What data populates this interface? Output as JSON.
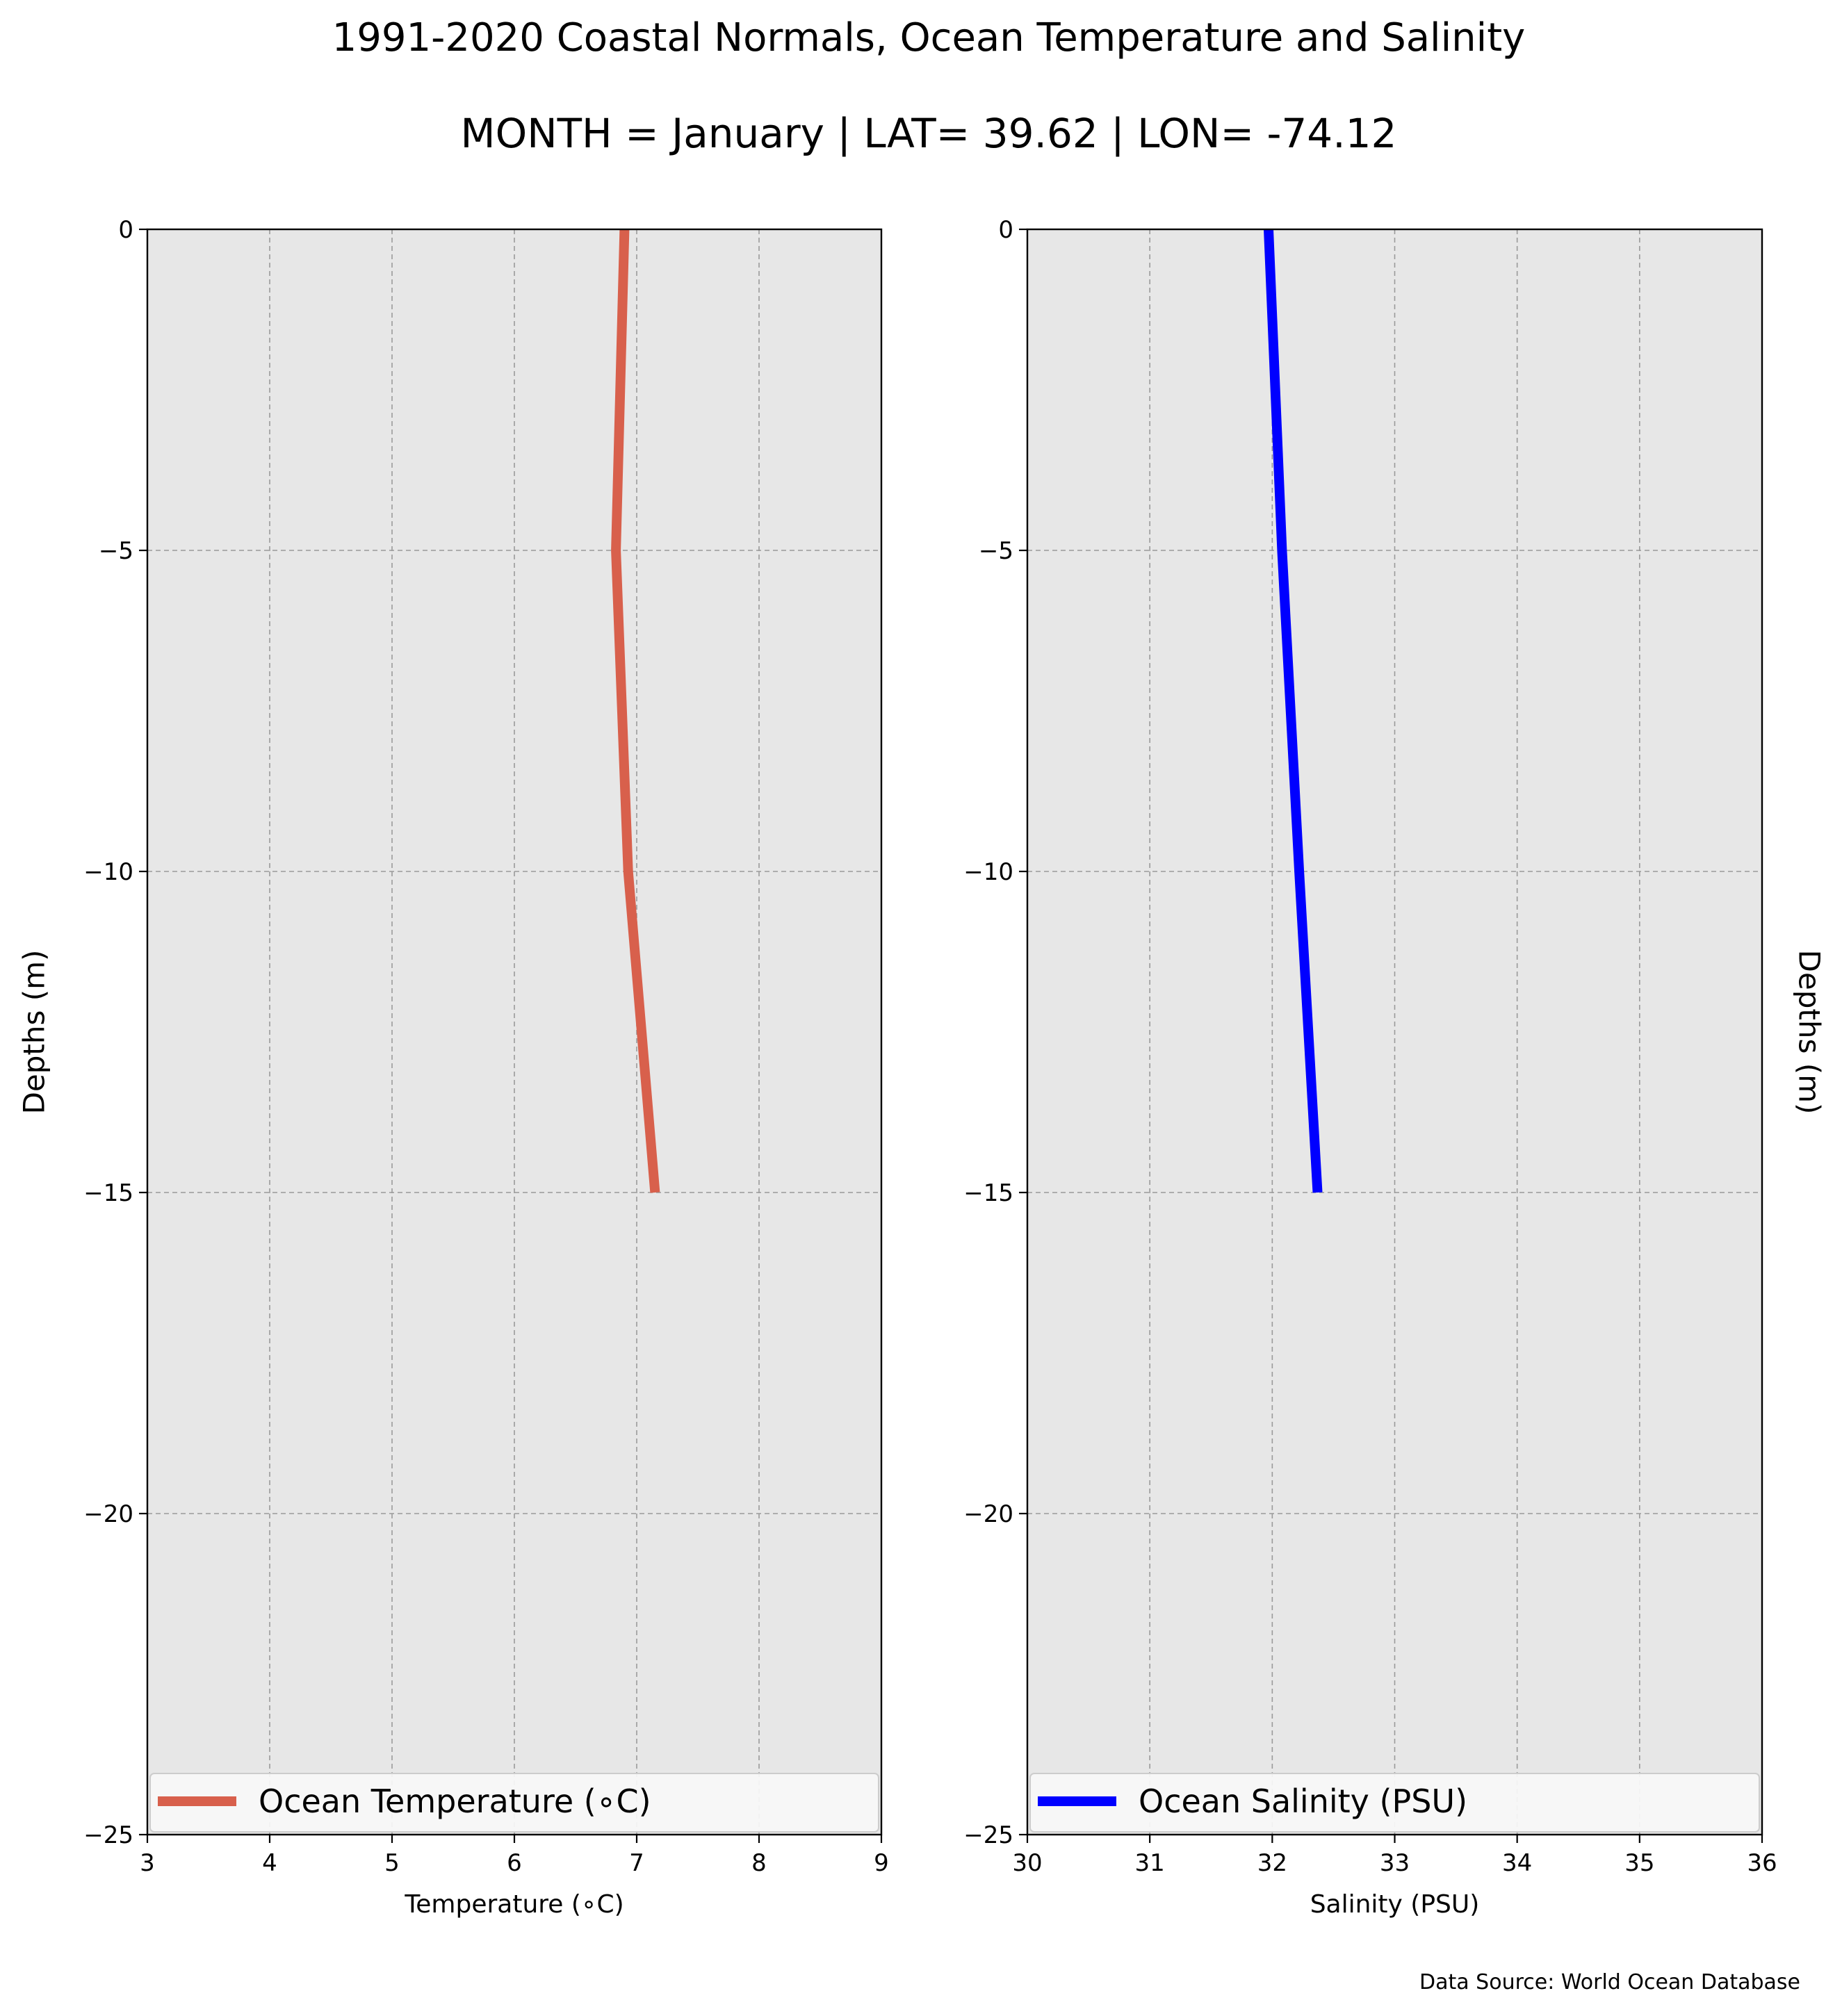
{
  "title": "1991-2020 Coastal Normals, Ocean Temperature and Salinity",
  "subtitle": "MONTH = January | LAT= 39.62 | LON= -74.12",
  "source_note": "Data Source: World Ocean Database",
  "chart_data": [
    {
      "type": "line",
      "xlabel": "Temperature (∘C)",
      "ylabel": "Depths (m)",
      "xlim": [
        3,
        9
      ],
      "ylim": [
        -25,
        0
      ],
      "xticks": [
        "3",
        "4",
        "5",
        "6",
        "7",
        "8",
        "9"
      ],
      "yticks": [
        "0",
        "−5",
        "−10",
        "−15",
        "−20",
        "−25"
      ],
      "grid": true,
      "legend_position": "lower center",
      "series": [
        {
          "name": "Ocean Temperature (∘C)",
          "color": "#d8604c",
          "x": [
            6.9,
            6.83,
            6.93,
            7.15
          ],
          "y": [
            0,
            -5,
            -10,
            -15
          ]
        }
      ]
    },
    {
      "type": "line",
      "xlabel": "Salinity (PSU)",
      "ylabel": "Depths (m)",
      "xlim": [
        30,
        36
      ],
      "ylim": [
        -25,
        0
      ],
      "xticks": [
        "30",
        "31",
        "32",
        "33",
        "34",
        "35",
        "36"
      ],
      "yticks": [
        "0",
        "−5",
        "−10",
        "−15",
        "−20",
        "−25"
      ],
      "grid": true,
      "legend_position": "lower center",
      "series": [
        {
          "name": "Ocean Salinity (PSU)",
          "color": "#0000ff",
          "x": [
            31.97,
            32.08,
            32.22,
            32.37
          ],
          "y": [
            0,
            -5,
            -10,
            -15
          ]
        }
      ]
    }
  ]
}
